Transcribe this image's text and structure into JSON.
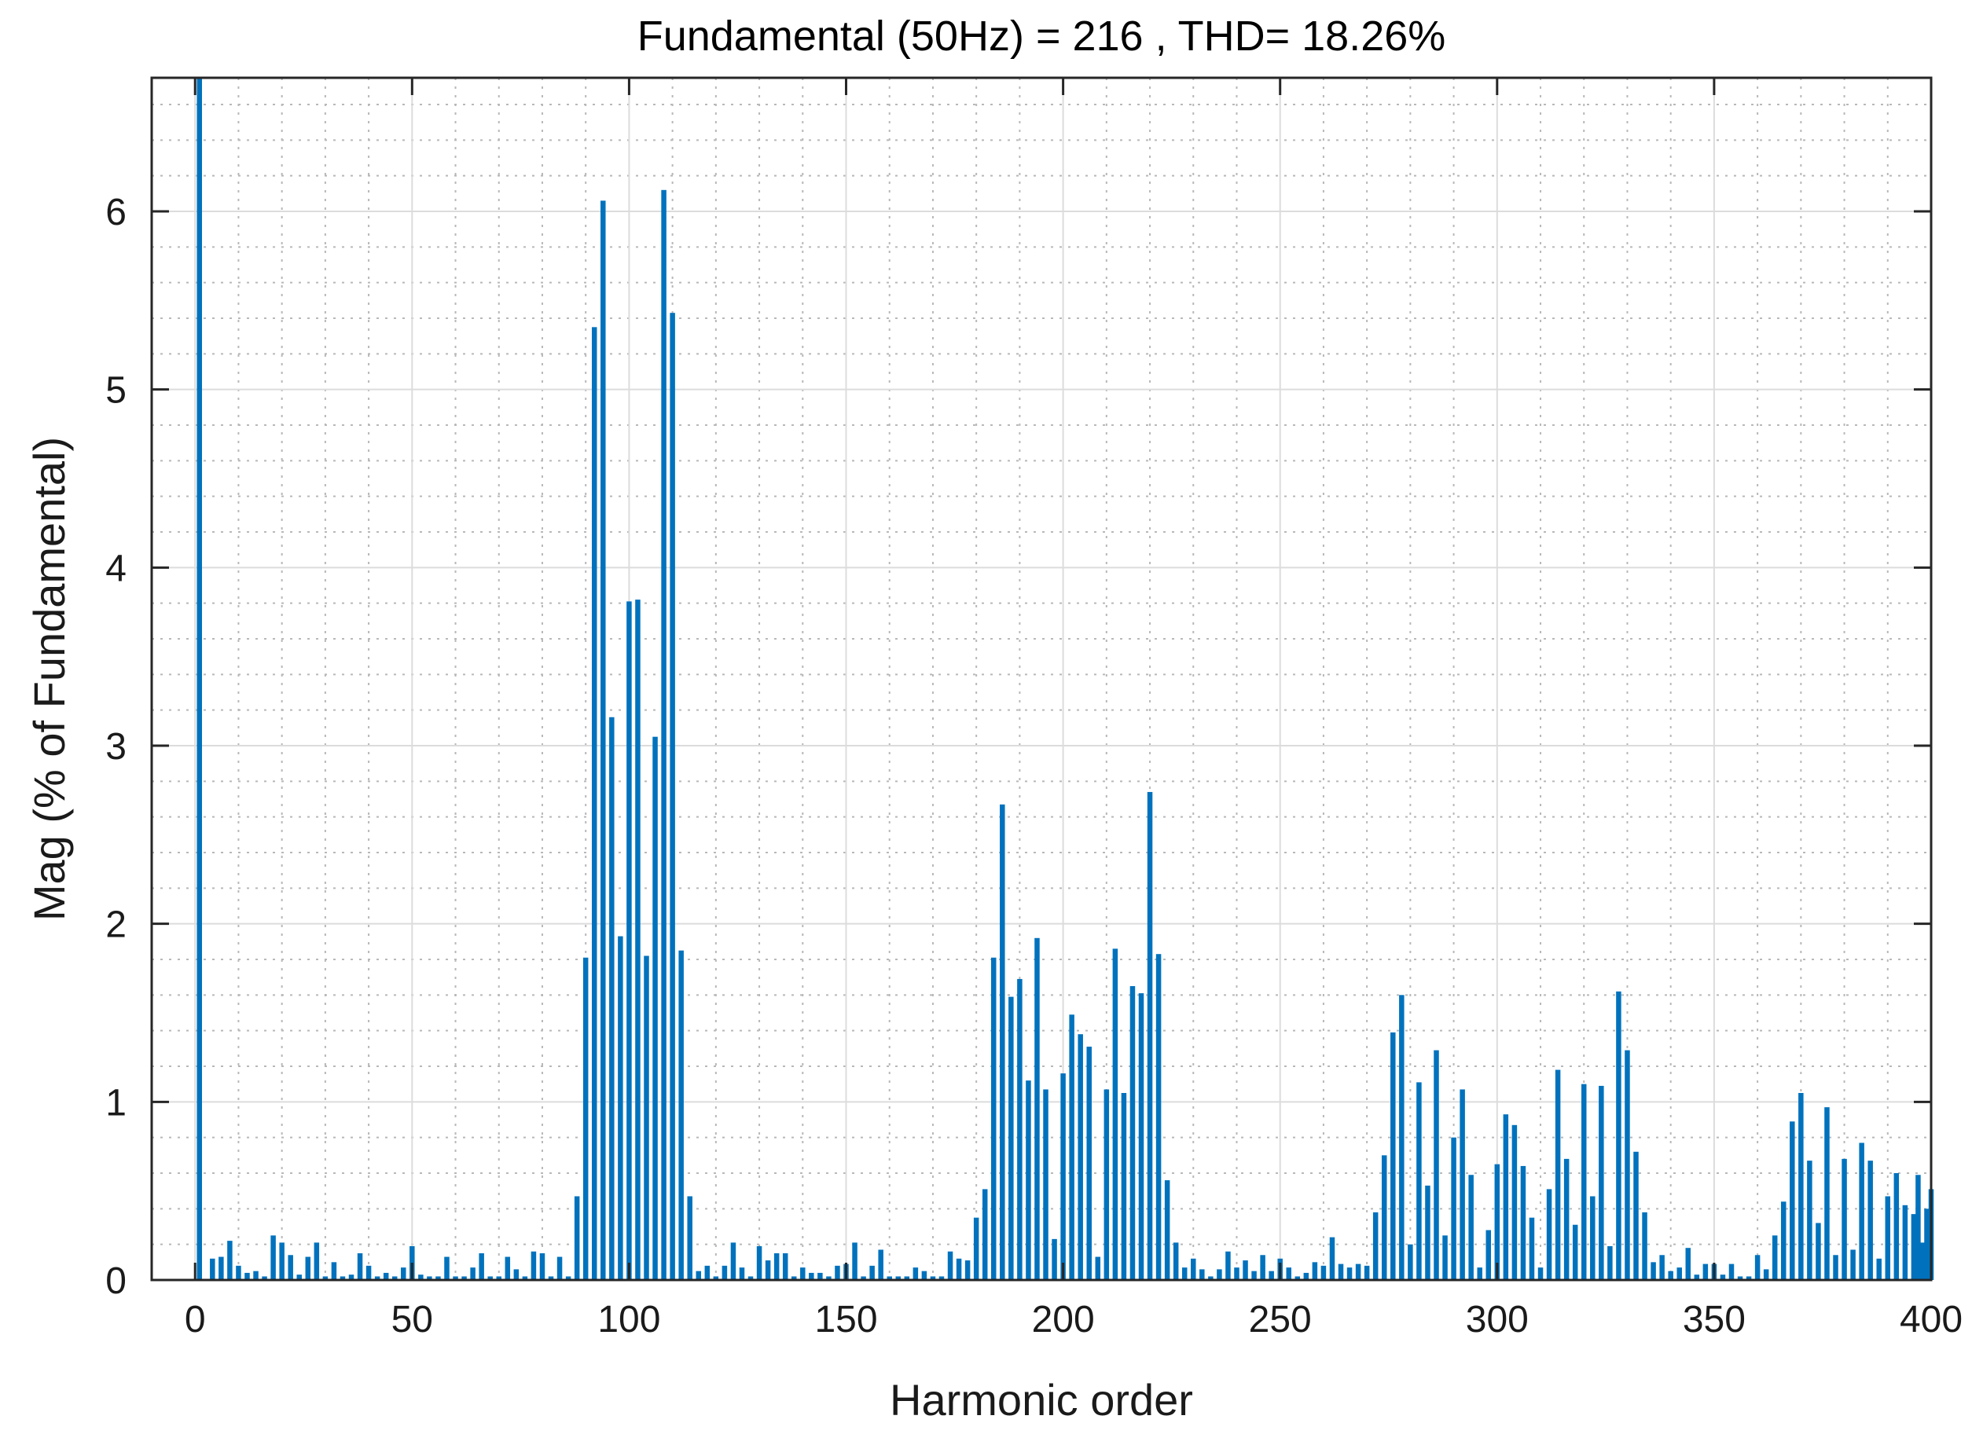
{
  "chart_data": {
    "type": "bar",
    "title": "Fundamental (50Hz) = 216 , THD= 18.26%",
    "xlabel": "Harmonic order",
    "ylabel": "Mag (% of Fundamental)",
    "xlim": [
      -10,
      400
    ],
    "ylim": [
      0,
      6.75
    ],
    "xticks": [
      0,
      50,
      100,
      150,
      200,
      250,
      300,
      350,
      400
    ],
    "yticks": [
      0,
      1,
      2,
      3,
      4,
      5,
      6
    ],
    "grid": true,
    "minor_grid": true,
    "bar_color": "#0072BD",
    "x": [
      0,
      2,
      4,
      6,
      8,
      10,
      12,
      14,
      16,
      18,
      20,
      22,
      24,
      26,
      28,
      30,
      32,
      34,
      36,
      38,
      40,
      42,
      44,
      46,
      48,
      50,
      52,
      54,
      56,
      58,
      60,
      62,
      64,
      66,
      68,
      70,
      72,
      74,
      76,
      78,
      80,
      82,
      84,
      86,
      88,
      90,
      92,
      94,
      96,
      98,
      100,
      102,
      104,
      106,
      108,
      110,
      112,
      114,
      116,
      118,
      120,
      122,
      124,
      126,
      128,
      130,
      132,
      134,
      136,
      138,
      140,
      142,
      144,
      146,
      148,
      150,
      152,
      154,
      156,
      158,
      160,
      162,
      164,
      166,
      168,
      170,
      172,
      174,
      176,
      178,
      180,
      182,
      184,
      186,
      188,
      190,
      192,
      194,
      196,
      198,
      200,
      202,
      204,
      206,
      208,
      210,
      212,
      214,
      216,
      218,
      220,
      222,
      224,
      226,
      228,
      230,
      232,
      234,
      236,
      238,
      240,
      242,
      244,
      246,
      248,
      250,
      252,
      254,
      256,
      258,
      260,
      262,
      264,
      266,
      268,
      270,
      272,
      274,
      276,
      278,
      280,
      282,
      284,
      286,
      288,
      290,
      292,
      294,
      296,
      298,
      300,
      302,
      304,
      306,
      308,
      310,
      312,
      314,
      316,
      318,
      320,
      322,
      324,
      326,
      328,
      330,
      332,
      334,
      336,
      338,
      340,
      342,
      344,
      346,
      348,
      350,
      352,
      354,
      356,
      358,
      360,
      362,
      364,
      366,
      368,
      370,
      372,
      374,
      376,
      378,
      380,
      382,
      384,
      386,
      388,
      390,
      392,
      394,
      396,
      398,
      400
    ],
    "values": [
      0.0,
      6.75,
      0.12,
      0.13,
      0.22,
      0.08,
      0.04,
      0.05,
      0.02,
      0.25,
      0.21,
      0.14,
      0.03,
      0.13,
      0.21,
      0.02,
      0.1,
      0.02,
      0.03,
      0.15,
      0.08,
      0.02,
      0.04,
      0.02,
      0.07,
      0.19,
      0.03,
      0.02,
      0.02,
      0.13,
      0.02,
      0.02,
      0.07,
      0.15,
      0.02,
      0.02,
      0.13,
      0.06,
      0.02,
      0.16,
      0.15,
      0.02,
      0.13,
      0.02,
      0.47,
      1.81,
      5.35,
      6.06,
      3.16,
      1.93,
      3.81,
      3.82,
      1.82,
      3.05,
      6.12,
      5.43,
      1.85,
      0.47,
      0.05,
      0.08,
      0.02,
      0.08,
      0.21,
      0.07,
      0.02,
      0.19,
      0.11,
      0.15,
      0.15,
      0.02,
      0.07,
      0.04,
      0.04,
      0.02,
      0.08,
      0.09,
      0.21,
      0.02,
      0.08,
      0.17,
      0.02,
      0.02,
      0.02,
      0.07,
      0.05,
      0.02,
      0.02,
      0.16,
      0.12,
      0.11,
      0.35,
      0.51,
      1.81,
      2.67,
      1.59,
      1.69,
      1.12,
      1.92,
      1.07,
      0.23,
      1.16,
      1.49,
      1.38,
      1.31,
      0.13,
      1.07,
      1.86,
      1.05,
      1.65,
      1.61,
      2.74,
      1.83,
      0.56,
      0.21,
      0.07,
      0.12,
      0.06,
      0.02,
      0.06,
      0.16,
      0.07,
      0.11,
      0.05,
      0.14,
      0.05,
      0.12,
      0.07,
      0.02,
      0.04,
      0.1,
      0.08,
      0.24,
      0.09,
      0.07,
      0.09,
      0.08,
      0.38,
      0.7,
      1.39,
      1.6,
      0.2,
      1.11,
      0.53,
      1.29,
      0.25,
      0.8,
      1.07,
      0.59,
      0.07,
      0.28,
      0.65,
      0.93,
      0.87,
      0.64,
      0.35,
      0.07,
      0.51,
      1.18,
      0.68,
      0.31,
      1.1,
      0.47,
      1.09,
      0.19,
      1.62,
      1.29,
      0.72,
      0.38,
      0.1,
      0.14,
      0.05,
      0.07,
      0.18,
      0.03,
      0.09,
      0.09,
      0.03,
      0.09,
      0.02,
      0.02,
      0.14,
      0.06,
      0.25,
      0.44,
      0.89,
      1.05,
      0.67,
      0.32,
      0.97,
      0.14,
      0.68,
      0.17,
      0.77,
      0.67,
      0.12,
      0.47,
      0.6,
      0.42,
      0.37,
      0.21,
      0.51
    ],
    "extra_bars": [
      {
        "x": 397,
        "value": 0.59
      },
      {
        "x": 399,
        "value": 0.4
      }
    ]
  }
}
